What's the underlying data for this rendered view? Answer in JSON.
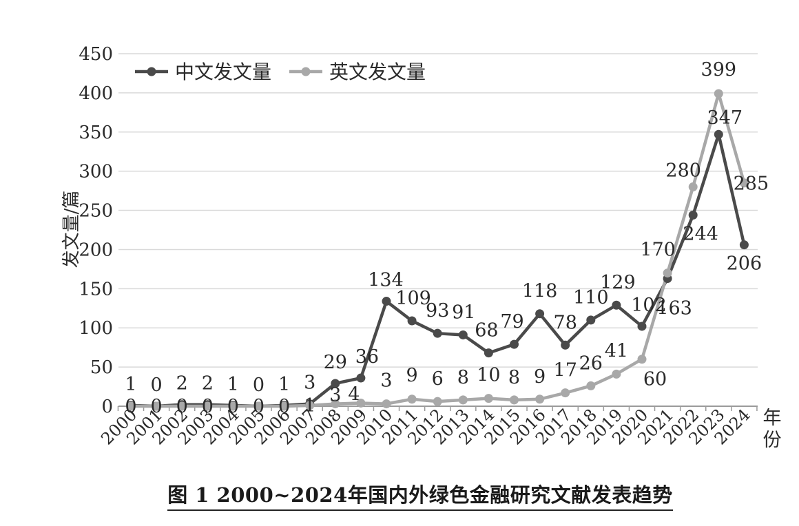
{
  "chart_data": {
    "type": "line",
    "title": "",
    "xlabel": "年份",
    "ylabel": "发文量/篇",
    "ylim": [
      0,
      450
    ],
    "yticks": [
      0,
      50,
      100,
      150,
      200,
      250,
      300,
      350,
      400,
      450
    ],
    "grid": true,
    "legend_position": "top-left",
    "categories": [
      "2000",
      "2001",
      "2002",
      "2003",
      "2004",
      "2005",
      "2006",
      "2007",
      "2008",
      "2009",
      "2010",
      "2011",
      "2012",
      "2013",
      "2014",
      "2015",
      "2016",
      "2017",
      "2018",
      "2019",
      "2020",
      "2021",
      "2022",
      "2023",
      "2024"
    ],
    "series": [
      {
        "name": "中文发文量",
        "color": "#4a4a4a",
        "values": [
          1,
          0,
          2,
          2,
          1,
          0,
          1,
          3,
          29,
          36,
          134,
          109,
          93,
          91,
          68,
          79,
          118,
          78,
          110,
          129,
          102,
          163,
          244,
          347,
          206
        ]
      },
      {
        "name": "英文发文量",
        "color": "#a8a8a8",
        "values": [
          0,
          0,
          0,
          0,
          0,
          0,
          0,
          1,
          3,
          4,
          3,
          9,
          6,
          8,
          10,
          8,
          9,
          17,
          26,
          41,
          60,
          170,
          280,
          399,
          285
        ]
      }
    ]
  },
  "caption": "图 1  2000~2024年国内外绿色金融研究文献发表趋势"
}
